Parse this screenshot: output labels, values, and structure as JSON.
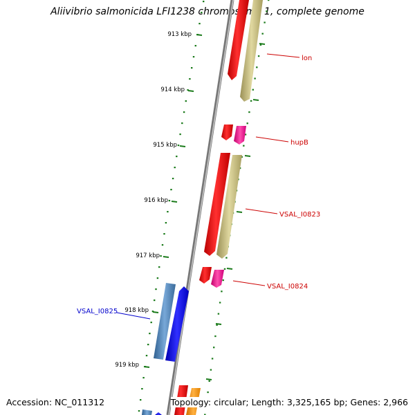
{
  "title": "Aliivibrio salmonicida LFI1238 chromosome 1, complete genome",
  "footer": {
    "accession": "Accession: NC_011312",
    "summary": "Topology: circular; Length: 3,325,165 bp; Genes: 2,966"
  },
  "ticks": [
    "913 kbp",
    "914 kbp",
    "915 kbp",
    "916 kbp",
    "917 kbp",
    "918 kbp",
    "919 kbp"
  ],
  "genes": {
    "lon": "lon",
    "hupB": "hupB",
    "vsal0823": "VSAL_I0823",
    "vsal0824": "VSAL_I0824",
    "vsal0825": "VSAL_I0825"
  },
  "colors": {
    "backbone": "#808080",
    "tick": "#1a7a1a",
    "forward_gene": "#ff0000",
    "forward_cds": "#c8be82",
    "small_cds": "#ff1493",
    "reverse_gene": "#0000ff",
    "reverse_cds": "#4682b4",
    "orange_cds": "#ff9900",
    "forward_label": "#cc0000",
    "reverse_label": "#0000cc"
  }
}
